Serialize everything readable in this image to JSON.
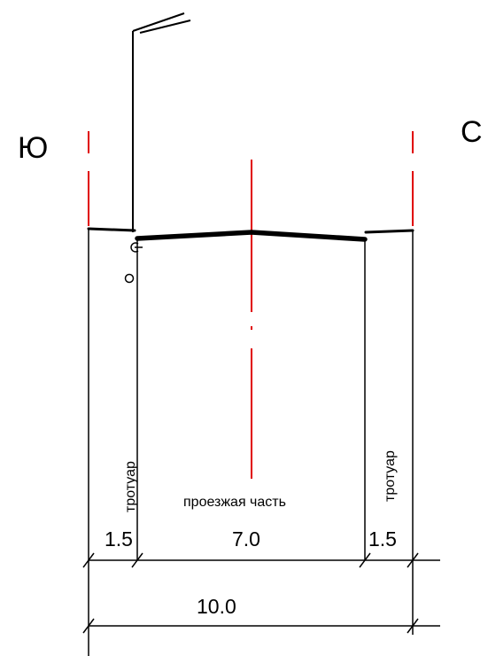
{
  "directions": {
    "south": "Ю",
    "north": "С"
  },
  "labels": {
    "sidewalk_left": "тротуар",
    "sidewalk_right": "тротуар",
    "carriageway": "проезжая часть"
  },
  "dimensions": {
    "sidewalk_left": "1.5",
    "carriageway": "7.0",
    "sidewalk_right": "1.5",
    "total": "10.0"
  },
  "colors": {
    "axis": "#e00000",
    "line": "#000000"
  }
}
